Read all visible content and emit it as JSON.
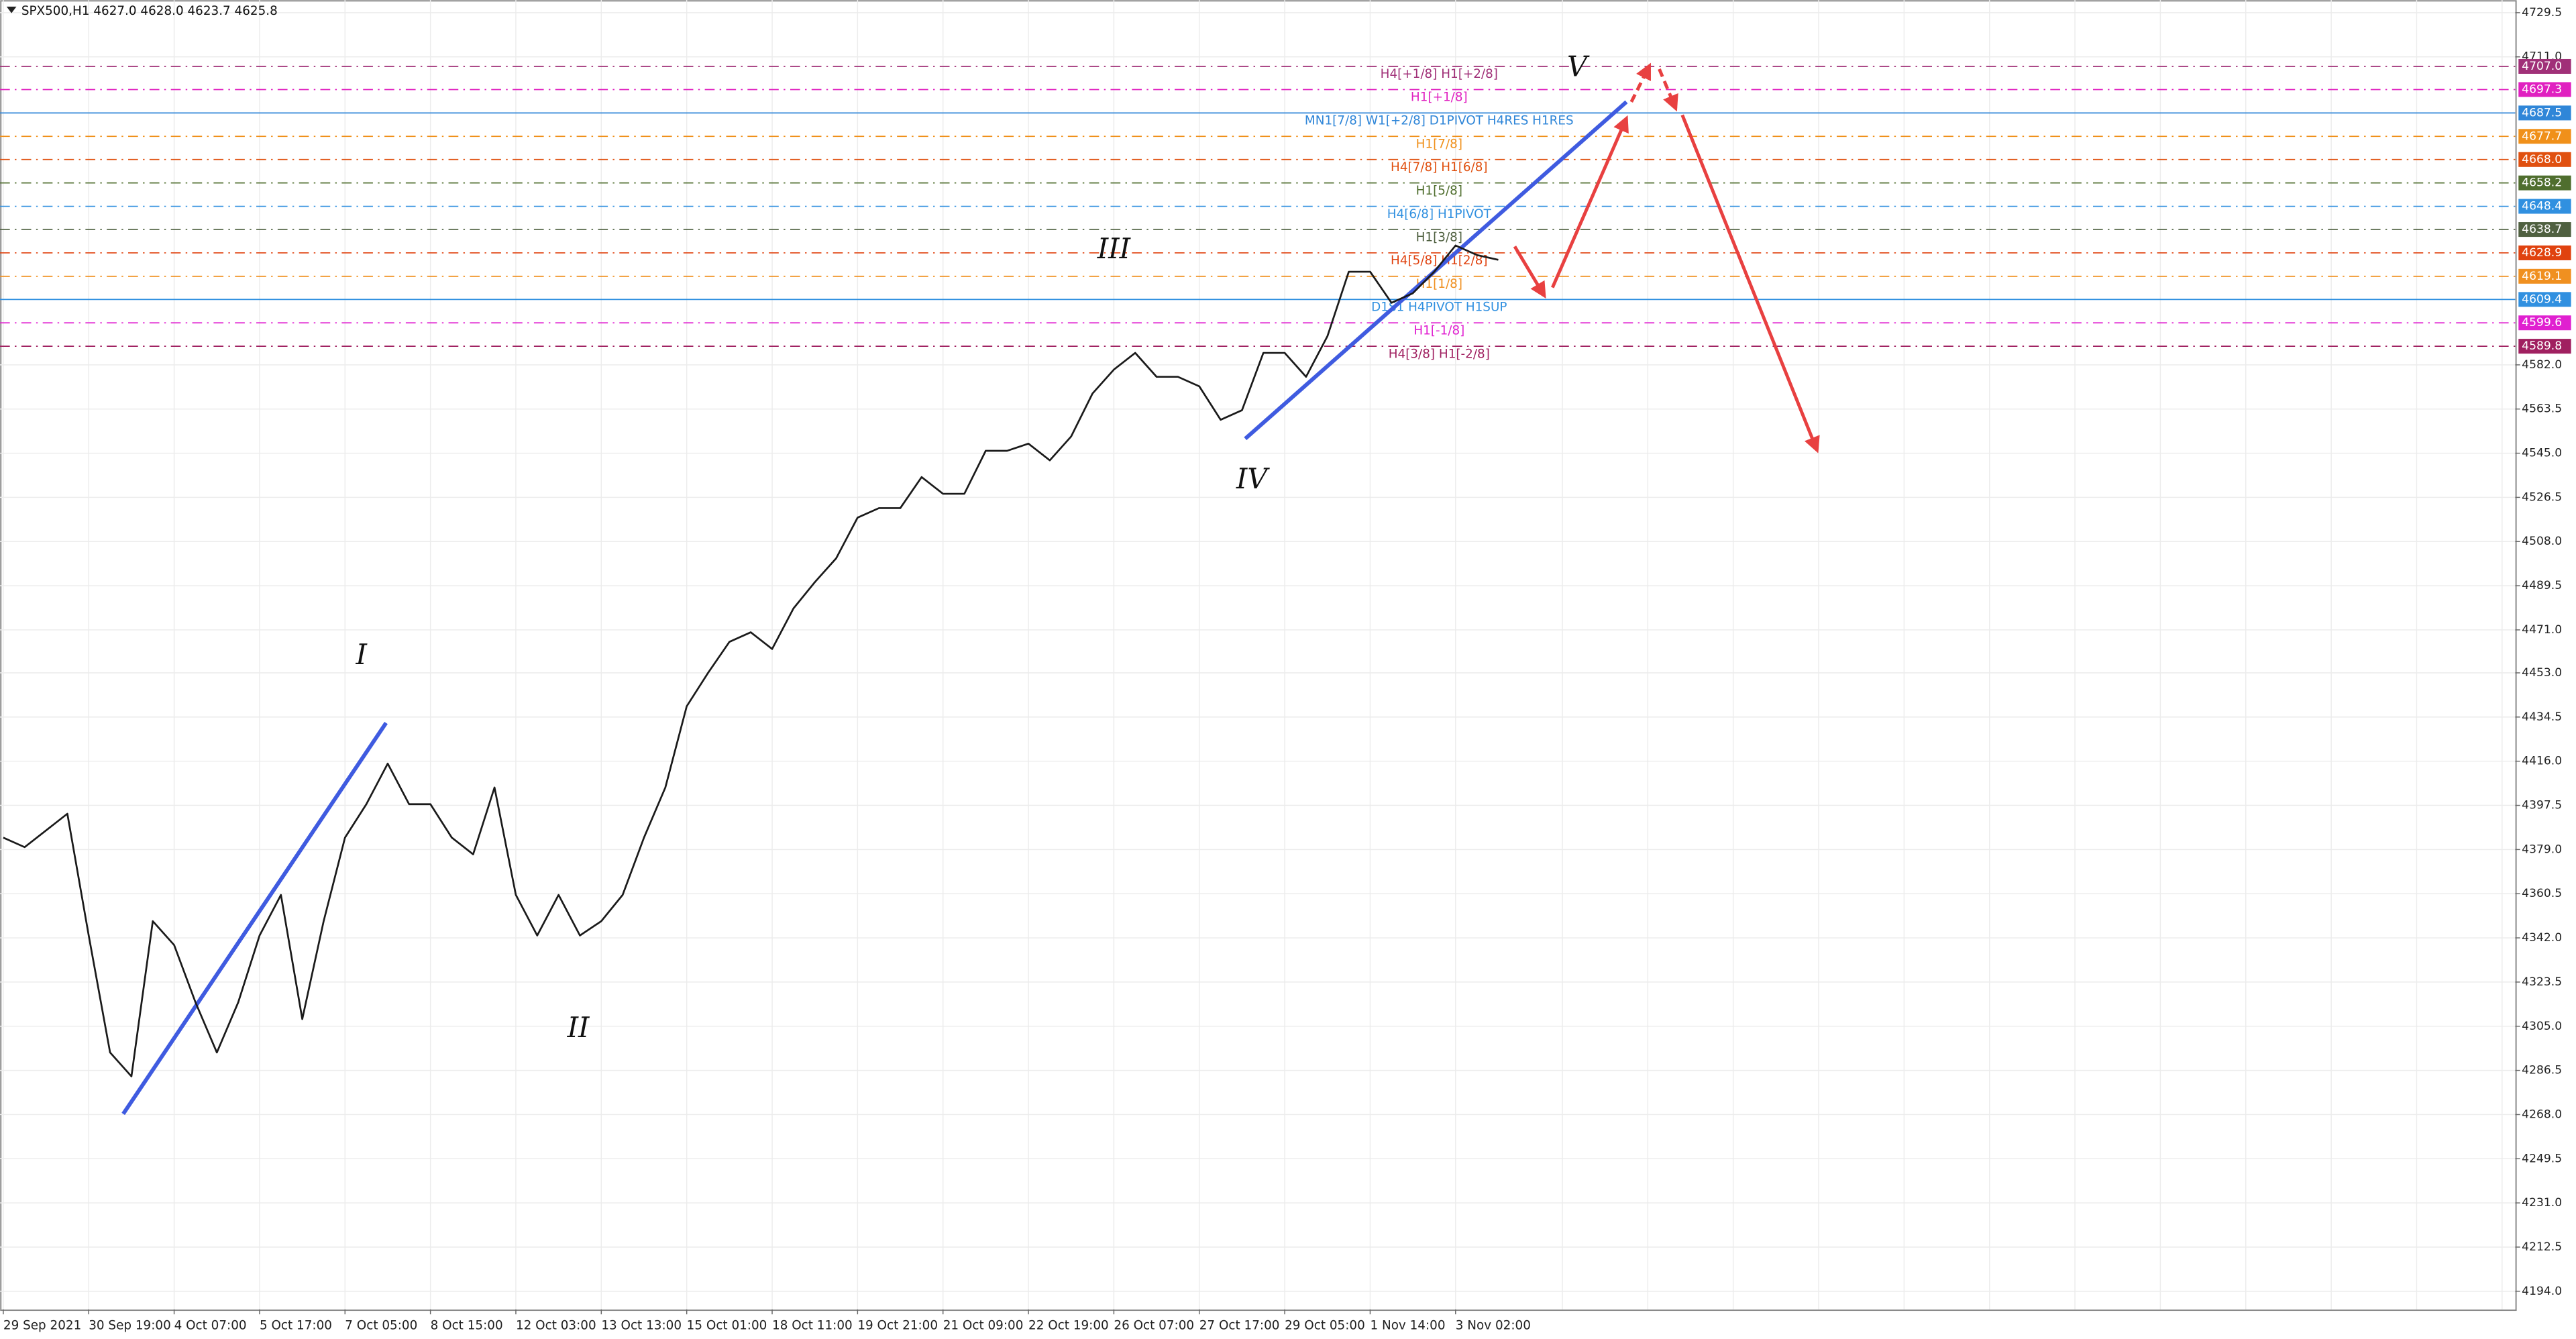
{
  "chart_data": {
    "type": "line",
    "title": "SPX500,H1  4627.0 4628.0 4623.7 4625.8",
    "categories": [
      "29 Sep 2021",
      null,
      null,
      null,
      "30 Sep 19:00",
      null,
      null,
      null,
      "4 Oct 07:00",
      null,
      null,
      null,
      "5 Oct 17:00",
      null,
      null,
      null,
      "7 Oct 05:00",
      null,
      null,
      null,
      "8 Oct 15:00",
      null,
      null,
      null,
      "12 Oct 03:00",
      null,
      null,
      null,
      "13 Oct 13:00",
      null,
      null,
      null,
      "15 Oct 01:00",
      null,
      null,
      null,
      "18 Oct 11:00",
      null,
      null,
      null,
      "19 Oct 21:00",
      null,
      null,
      null,
      "21 Oct 09:00",
      null,
      null,
      null,
      "22 Oct 19:00",
      null,
      null,
      null,
      "26 Oct 07:00",
      null,
      null,
      null,
      "27 Oct 17:00",
      null,
      null,
      null,
      "29 Oct 05:00",
      null,
      null,
      null,
      "1 Nov 14:00",
      null,
      null,
      null,
      "3 Nov 02:00",
      null,
      null
    ],
    "series": [
      {
        "name": "SPX500",
        "color": "#1a1a1a",
        "values": [
          4384,
          4380,
          4387,
          4394,
          4343,
          4294,
          4284,
          4349,
          4339,
          4315,
          4294,
          4315,
          4343,
          4360,
          4308,
          4349,
          4384,
          4398,
          4415,
          4398,
          4398,
          4384,
          4377,
          4405,
          4360,
          4343,
          4360,
          4343,
          4349,
          4360,
          4384,
          4405,
          4439,
          4453,
          4466,
          4470,
          4463,
          4480,
          4491,
          4501,
          4518,
          4522,
          4522,
          4535,
          4528,
          4528,
          4546,
          4546,
          4549,
          4542,
          4552,
          4570,
          4580,
          4587,
          4577,
          4577,
          4573,
          4559,
          4563,
          4587,
          4587,
          4577,
          4594,
          4621,
          4621,
          4608,
          4612,
          4621,
          4632,
          4628,
          4626
        ]
      }
    ],
    "ylim": [
      4186.4,
      4734.8
    ],
    "yticks": [
      4729.5,
      {
        "value": 4711,
        "label": "4711.0"
      },
      {
        "value": 4582,
        "label": "4582.0"
      },
      4563.5,
      {
        "value": 4545,
        "label": "4545.0"
      },
      4526.5,
      {
        "value": 4508,
        "label": "4508.0"
      },
      4489.5,
      {
        "value": 4471,
        "label": "4471.0"
      },
      {
        "value": 4453,
        "label": "4453.0"
      },
      4434.5,
      {
        "value": 4416,
        "label": "4416.0"
      },
      4397.5,
      {
        "value": 4379,
        "label": "4379.0"
      },
      4360.5,
      {
        "value": 4342,
        "label": "4342.0"
      },
      4323.5,
      {
        "value": 4305,
        "label": "4305.0"
      },
      4286.5,
      {
        "value": 4268,
        "label": "4268.0"
      },
      4249.5,
      {
        "value": 4231,
        "label": "4231.0"
      },
      4212.5,
      {
        "value": 4194,
        "label": "4194.0"
      }
    ],
    "grid": true,
    "levels": [
      {
        "value": 4707,
        "label": "4707.0",
        "text": "H4[+1/8] H1[+2/8]",
        "color": "#a03078",
        "style": "dashed"
      },
      {
        "value": 4697.3,
        "label": "4697.3",
        "text": "H1[+1/8]",
        "color": "#e020c0",
        "style": "dashed"
      },
      {
        "value": 4687.5,
        "label": "4687.5",
        "text": "MN1[7/8] W1[+2/8] D1PIVOT H4RES H1RES",
        "color": "#2f86d8",
        "style": "solid"
      },
      {
        "value": 4677.7,
        "label": "4677.7",
        "text": "H1[7/8]",
        "color": "#f0901a",
        "style": "dashed"
      },
      {
        "value": 4668,
        "label": "4668.0",
        "text": "H4[7/8] H1[6/8]",
        "color": "#e0500f",
        "style": "dashed"
      },
      {
        "value": 4658.2,
        "label": "4658.2",
        "text": "H1[5/8]",
        "color": "#4f6e2e",
        "style": "dashed"
      },
      {
        "value": 4648.4,
        "label": "4648.4",
        "text": "H4[6/8] H1PIVOT",
        "color": "#3090e0",
        "style": "dashed"
      },
      {
        "value": 4638.7,
        "label": "4638.7",
        "text": "H1[3/8]",
        "color": "#4f6040",
        "style": "dashed"
      },
      {
        "value": 4628.9,
        "label": "4628.9",
        "text": "H4[5/8] H1[2/8]",
        "color": "#e0420f",
        "style": "dashed"
      },
      {
        "value": 4619.1,
        "label": "4619.1",
        "text": "H1[1/8]",
        "color": "#f09020",
        "style": "dashed"
      },
      {
        "value": 4609.4,
        "label": "4609.4",
        "text": "D1S1 H4PIVOT H1SUP",
        "color": "#3090e0",
        "style": "solid"
      },
      {
        "value": 4599.6,
        "label": "4599.6",
        "text": "H1[-1/8]",
        "color": "#e020d0",
        "style": "dashed"
      },
      {
        "value": 4589.8,
        "label": "4589.8",
        "text": "H4[3/8] H1[-2/8]",
        "color": "#a02060",
        "style": "dashed"
      }
    ],
    "annotations": [
      "I",
      "II",
      "III",
      "IV",
      "V"
    ]
  }
}
